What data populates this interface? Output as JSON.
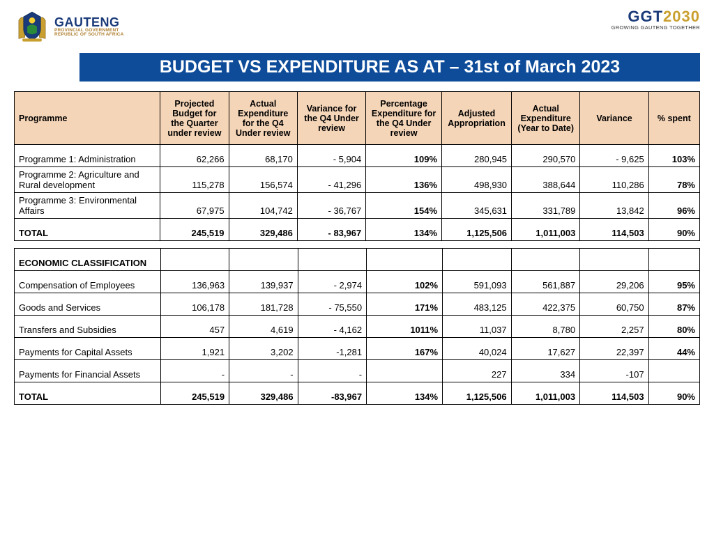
{
  "colors": {
    "title_bg": "#0e4c9a",
    "title_fg": "#ffffff",
    "header_bg": "#f5d5b8",
    "border": "#000000",
    "brand_blue": "#1a3a7a",
    "brand_gold": "#c9a030",
    "brand_tan": "#b08030"
  },
  "branding": {
    "left": {
      "name": "GAUTENG",
      "line1": "PROVINCIAL GOVERNMENT",
      "line2": "REPUBLIC OF SOUTH AFRICA"
    },
    "right": {
      "ggt": "GGT",
      "year": "2030",
      "sub": "GROWING GAUTENG TOGETHER"
    }
  },
  "title": "BUDGET VS EXPENDITURE AS AT – 31st of March 2023",
  "columns": [
    "Programme",
    "Projected Budget for the Quarter under review",
    "Actual Expenditure for the Q4 Under review",
    "Variance for the Q4 Under review",
    "Percentage Expenditure for the Q4 Under review",
    "Adjusted Appropriation",
    "Actual Expenditure (Year to Date)",
    "Variance",
    "% spent"
  ],
  "programmes": [
    {
      "name": "Programme 1: Administration",
      "pb": "62,266",
      "ae": "68,170",
      "var": "- 5,904",
      "pct": "109%",
      "adj": "280,945",
      "ytd": "290,570",
      "var2": "- 9,625",
      "spent": "103%"
    },
    {
      "name": "Programme  2: Agriculture and Rural development",
      "pb": "115,278",
      "ae": "156,574",
      "var": "- 41,296",
      "pct": "136%",
      "adj": "498,930",
      "ytd": "388,644",
      "var2": "110,286",
      "spent": "78%"
    },
    {
      "name": "Programme 3: Environmental Affairs",
      "pb": "67,975",
      "ae": "104,742",
      "var": "- 36,767",
      "pct": "154%",
      "adj": "345,631",
      "ytd": "331,789",
      "var2": "13,842",
      "spent": "96%"
    }
  ],
  "programmes_total": {
    "name": "TOTAL",
    "pb": "245,519",
    "ae": "329,486",
    "var": "- 83,967",
    "pct": "134%",
    "adj": "1,125,506",
    "ytd": "1,011,003",
    "var2": "114,503",
    "spent": "90%"
  },
  "econ_header": "ECONOMIC CLASSIFICATION",
  "econ": [
    {
      "name": "Compensation of Employees",
      "pb": "136,963",
      "ae": "139,937",
      "var": "- 2,974",
      "pct": "102%",
      "adj": "591,093",
      "ytd": "561,887",
      "var2": "29,206",
      "spent": "95%"
    },
    {
      "name": "Goods and Services",
      "pb": "106,178",
      "ae": "181,728",
      "var": "- 75,550",
      "pct": "171%",
      "adj": "483,125",
      "ytd": "422,375",
      "var2": "60,750",
      "spent": "87%"
    },
    {
      "name": "Transfers and Subsidies",
      "pb": "457",
      "ae": "4,619",
      "var": "- 4,162",
      "pct": "1011%",
      "adj": "11,037",
      "ytd": "8,780",
      "var2": "2,257",
      "spent": "80%"
    },
    {
      "name": "Payments for Capital Assets",
      "pb": "1,921",
      "ae": "3,202",
      "var": "-1,281",
      "pct": "167%",
      "adj": "40,024",
      "ytd": "17,627",
      "var2": "22,397",
      "spent": "44%"
    },
    {
      "name": "Payments for Financial Assets",
      "pb": "-",
      "ae": "-",
      "var": "-",
      "pct": "",
      "adj": "227",
      "ytd": "334",
      "var2": "-107",
      "spent": ""
    }
  ],
  "econ_total": {
    "name": "TOTAL",
    "pb": "245,519",
    "ae": "329,486",
    "var": "-83,967",
    "pct": "134%",
    "adj": "1,125,506",
    "ytd": "1,011,003",
    "var2": "114,503",
    "spent": "90%"
  }
}
